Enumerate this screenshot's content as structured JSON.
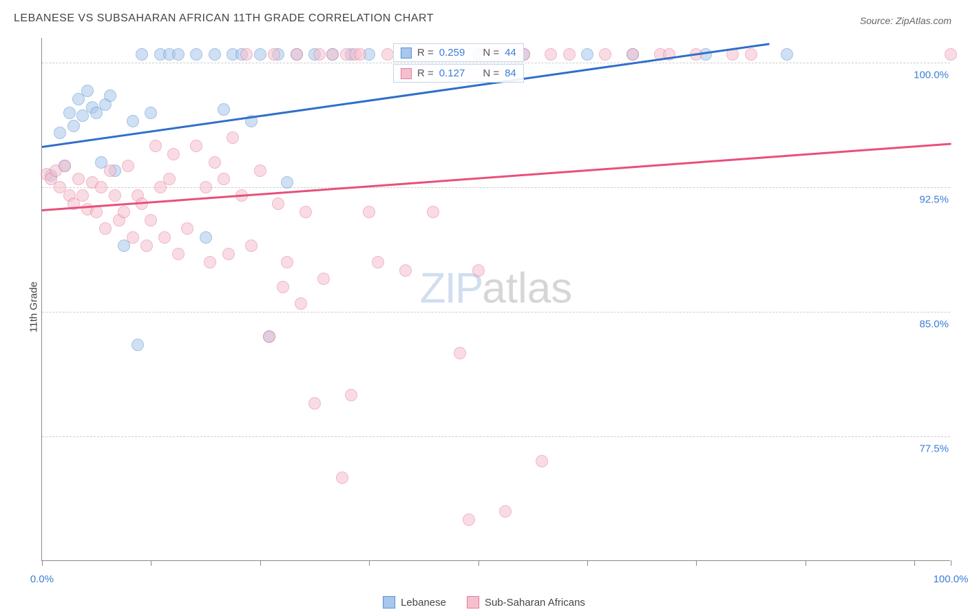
{
  "title": "LEBANESE VS SUBSAHARAN AFRICAN 11TH GRADE CORRELATION CHART",
  "source_label": "Source: ZipAtlas.com",
  "y_axis_label": "11th Grade",
  "watermark": {
    "part1": "ZIP",
    "part2": "atlas"
  },
  "chart": {
    "type": "scatter",
    "background_color": "#ffffff",
    "grid_color": "#cccccc",
    "axis_color": "#888888",
    "marker_radius": 9,
    "marker_stroke_width": 1.5,
    "marker_opacity": 0.55,
    "xlim": [
      0,
      100
    ],
    "ylim": [
      70,
      101.5
    ],
    "x_ticks": [
      0,
      12,
      24,
      36,
      48,
      60,
      72,
      84,
      96,
      100
    ],
    "x_tick_labels": {
      "0": "0.0%",
      "100": "100.0%"
    },
    "y_gridlines": [
      77.5,
      85.0,
      92.5,
      100.0
    ],
    "y_tick_labels": [
      "77.5%",
      "85.0%",
      "92.5%",
      "100.0%"
    ],
    "tick_label_color": "#3b7dd8",
    "tick_label_fontsize": 15,
    "series": [
      {
        "name": "Lebanese",
        "color_fill": "#a8c7ec",
        "color_stroke": "#5b8fd0",
        "r_label": "R = ",
        "r_value": "0.259",
        "n_label": "N = ",
        "n_value": "44",
        "trend": {
          "x1": 0,
          "y1": 95.0,
          "x2": 80,
          "y2": 101.2,
          "color": "#2f6fc9",
          "width": 2.5
        },
        "points": [
          [
            1,
            93.2
          ],
          [
            2,
            95.8
          ],
          [
            2.5,
            93.8
          ],
          [
            3,
            97.0
          ],
          [
            3.5,
            96.2
          ],
          [
            4,
            97.8
          ],
          [
            4.5,
            96.8
          ],
          [
            5,
            98.3
          ],
          [
            5.5,
            97.3
          ],
          [
            6,
            97.0
          ],
          [
            6.5,
            94.0
          ],
          [
            7,
            97.5
          ],
          [
            7.5,
            98.0
          ],
          [
            8,
            93.5
          ],
          [
            9,
            89.0
          ],
          [
            10,
            96.5
          ],
          [
            10.5,
            83.0
          ],
          [
            11,
            100.5
          ],
          [
            12,
            97.0
          ],
          [
            13,
            100.5
          ],
          [
            14,
            100.5
          ],
          [
            15,
            100.5
          ],
          [
            17,
            100.5
          ],
          [
            18,
            89.5
          ],
          [
            19,
            100.5
          ],
          [
            20,
            97.2
          ],
          [
            21,
            100.5
          ],
          [
            22,
            100.5
          ],
          [
            23,
            96.5
          ],
          [
            24,
            100.5
          ],
          [
            25,
            83.5
          ],
          [
            26,
            100.5
          ],
          [
            27,
            92.8
          ],
          [
            28,
            100.5
          ],
          [
            30,
            100.5
          ],
          [
            32,
            100.5
          ],
          [
            34,
            100.5
          ],
          [
            36,
            100.5
          ],
          [
            48,
            100.5
          ],
          [
            53,
            100.5
          ],
          [
            60,
            100.5
          ],
          [
            65,
            100.5
          ],
          [
            73,
            100.5
          ],
          [
            82,
            100.5
          ]
        ]
      },
      {
        "name": "Sub-Saharan Africans",
        "color_fill": "#f5c0cd",
        "color_stroke": "#e67a9a",
        "r_label": "R = ",
        "r_value": "0.127",
        "n_label": "N = ",
        "n_value": "84",
        "trend": {
          "x1": 0,
          "y1": 91.2,
          "x2": 100,
          "y2": 95.2,
          "color": "#e94f7a",
          "width": 2.5
        },
        "points": [
          [
            0.5,
            93.3
          ],
          [
            1,
            93.0
          ],
          [
            1.5,
            93.5
          ],
          [
            2,
            92.5
          ],
          [
            2.5,
            93.8
          ],
          [
            3,
            92.0
          ],
          [
            3.5,
            91.5
          ],
          [
            4,
            93.0
          ],
          [
            4.5,
            92.0
          ],
          [
            5,
            91.2
          ],
          [
            5.5,
            92.8
          ],
          [
            6,
            91.0
          ],
          [
            6.5,
            92.5
          ],
          [
            7,
            90.0
          ],
          [
            7.5,
            93.5
          ],
          [
            8,
            92.0
          ],
          [
            8.5,
            90.5
          ],
          [
            9,
            91.0
          ],
          [
            9.5,
            93.8
          ],
          [
            10,
            89.5
          ],
          [
            10.5,
            92.0
          ],
          [
            11,
            91.5
          ],
          [
            11.5,
            89.0
          ],
          [
            12,
            90.5
          ],
          [
            12.5,
            95.0
          ],
          [
            13,
            92.5
          ],
          [
            13.5,
            89.5
          ],
          [
            14,
            93.0
          ],
          [
            14.5,
            94.5
          ],
          [
            15,
            88.5
          ],
          [
            16,
            90.0
          ],
          [
            17,
            95.0
          ],
          [
            18,
            92.5
          ],
          [
            18.5,
            88.0
          ],
          [
            19,
            94.0
          ],
          [
            20,
            93.0
          ],
          [
            20.5,
            88.5
          ],
          [
            21,
            95.5
          ],
          [
            22,
            92.0
          ],
          [
            22.5,
            100.5
          ],
          [
            23,
            89.0
          ],
          [
            24,
            93.5
          ],
          [
            25,
            83.5
          ],
          [
            25.5,
            100.5
          ],
          [
            26,
            91.5
          ],
          [
            26.5,
            86.5
          ],
          [
            27,
            88.0
          ],
          [
            28,
            100.5
          ],
          [
            28.5,
            85.5
          ],
          [
            29,
            91.0
          ],
          [
            30,
            79.5
          ],
          [
            30.5,
            100.5
          ],
          [
            31,
            87.0
          ],
          [
            32,
            100.5
          ],
          [
            33,
            75.0
          ],
          [
            33.5,
            100.5
          ],
          [
            34,
            80.0
          ],
          [
            34.5,
            100.5
          ],
          [
            35,
            100.5
          ],
          [
            36,
            91.0
          ],
          [
            37,
            88.0
          ],
          [
            38,
            100.5
          ],
          [
            40,
            87.5
          ],
          [
            41,
            100.5
          ],
          [
            42,
            100.5
          ],
          [
            43,
            91.0
          ],
          [
            45,
            100.5
          ],
          [
            46,
            82.5
          ],
          [
            47,
            72.5
          ],
          [
            48,
            87.5
          ],
          [
            50,
            100.5
          ],
          [
            51,
            73.0
          ],
          [
            53,
            100.5
          ],
          [
            55,
            76.0
          ],
          [
            56,
            100.5
          ],
          [
            58,
            100.5
          ],
          [
            62,
            100.5
          ],
          [
            65,
            100.5
          ],
          [
            68,
            100.5
          ],
          [
            69,
            100.5
          ],
          [
            72,
            100.5
          ],
          [
            76,
            100.5
          ],
          [
            78,
            100.5
          ],
          [
            100,
            100.5
          ]
        ]
      }
    ]
  },
  "legend": {
    "items": [
      {
        "label": "Lebanese",
        "fill": "#a8c7ec",
        "stroke": "#5b8fd0"
      },
      {
        "label": "Sub-Saharan Africans",
        "fill": "#f5c0cd",
        "stroke": "#e67a9a"
      }
    ]
  }
}
